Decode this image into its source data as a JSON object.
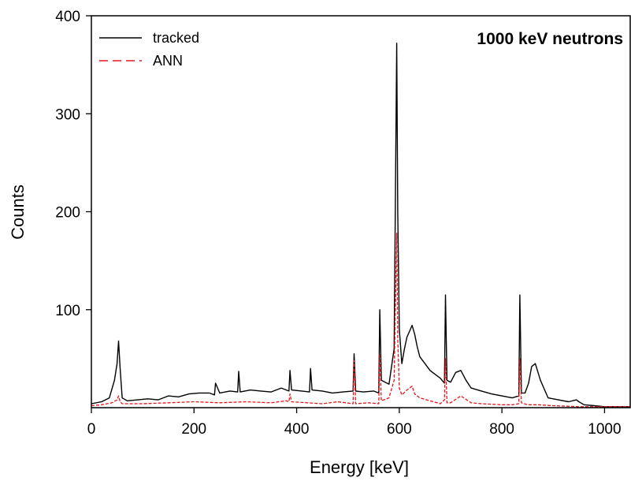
{
  "chart_data": {
    "type": "line",
    "annotation": "1000 keV neutrons",
    "xlabel": "Energy [keV]",
    "ylabel": "Counts",
    "xlim": [
      0,
      1050
    ],
    "ylim": [
      0,
      400
    ],
    "xticks": [
      0,
      200,
      400,
      600,
      800,
      1000
    ],
    "yticks": [
      100,
      200,
      300,
      400
    ],
    "legend_placement": "top-left",
    "grid": false,
    "series": [
      {
        "name": "tracked",
        "color": "#000000",
        "style": "solid",
        "x": [
          0,
          20,
          35,
          45,
          50,
          53,
          56,
          60,
          70,
          90,
          110,
          130,
          150,
          170,
          190,
          210,
          230,
          240,
          242,
          250,
          270,
          285,
          287,
          290,
          310,
          330,
          350,
          370,
          385,
          387,
          390,
          410,
          425,
          427,
          430,
          450,
          470,
          490,
          510,
          512,
          515,
          530,
          550,
          560,
          562,
          565,
          580,
          590,
          595,
          597,
          600,
          605,
          610,
          615,
          620,
          625,
          630,
          635,
          640,
          650,
          660,
          670,
          680,
          688,
          690,
          693,
          700,
          710,
          720,
          730,
          740,
          760,
          780,
          800,
          820,
          833,
          835,
          838,
          845,
          852,
          858,
          865,
          875,
          890,
          910,
          930,
          945,
          950,
          960,
          980,
          1000,
          1020,
          1050
        ],
        "y": [
          4,
          6,
          10,
          28,
          45,
          68,
          40,
          10,
          7,
          8,
          9,
          8,
          12,
          11,
          14,
          15,
          15,
          13,
          25,
          15,
          17,
          16,
          37,
          16,
          18,
          17,
          16,
          20,
          17,
          38,
          18,
          17,
          16,
          40,
          18,
          17,
          15,
          16,
          17,
          55,
          17,
          16,
          17,
          15,
          100,
          28,
          24,
          60,
          372,
          200,
          80,
          45,
          60,
          72,
          78,
          84,
          75,
          62,
          52,
          45,
          38,
          34,
          30,
          25,
          115,
          28,
          26,
          36,
          38,
          28,
          20,
          17,
          14,
          12,
          10,
          12,
          115,
          15,
          15,
          25,
          42,
          45,
          28,
          10,
          8,
          6,
          8,
          6,
          3,
          2,
          1,
          1,
          1
        ]
      },
      {
        "name": "ANN",
        "color": "#e8141b",
        "style": "dashed",
        "x": [
          0,
          20,
          40,
          50,
          53,
          56,
          60,
          80,
          100,
          150,
          200,
          250,
          300,
          350,
          380,
          385,
          387,
          390,
          420,
          450,
          480,
          510,
          512,
          515,
          540,
          560,
          562,
          565,
          580,
          590,
          595,
          597,
          600,
          605,
          615,
          625,
          630,
          640,
          660,
          680,
          688,
          690,
          693,
          700,
          720,
          740,
          760,
          800,
          820,
          833,
          835,
          838,
          850,
          870,
          900,
          950,
          1000,
          1050
        ],
        "y": [
          2,
          3,
          5,
          8,
          12,
          6,
          4,
          4,
          4,
          5,
          6,
          5,
          6,
          5,
          7,
          6,
          14,
          6,
          5,
          4,
          6,
          4,
          48,
          4,
          5,
          4,
          55,
          7,
          10,
          28,
          178,
          70,
          20,
          13,
          18,
          22,
          14,
          10,
          7,
          4,
          8,
          50,
          5,
          5,
          12,
          5,
          4,
          3,
          3,
          4,
          50,
          5,
          3,
          3,
          2,
          1,
          1,
          1
        ]
      }
    ]
  }
}
